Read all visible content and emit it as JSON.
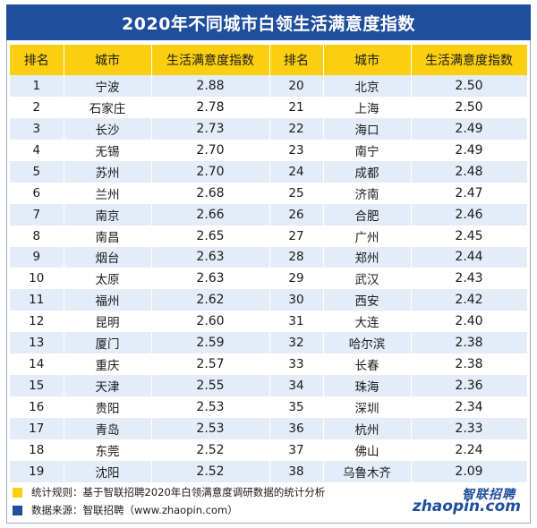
{
  "title": "2020年不同城市白领生活满意度指数",
  "headers": [
    "排名",
    "城市",
    "生活满意度指数",
    "排名",
    "城市",
    "生活满意度指数"
  ],
  "rows": [
    {
      "rank_l": "1",
      "city_l": "宁波",
      "index_l": "2.88",
      "rank_r": "20",
      "city_r": "北京",
      "index_r": "2.50"
    },
    {
      "rank_l": "2",
      "city_l": "石家庄",
      "index_l": "2.78",
      "rank_r": "21",
      "city_r": "上海",
      "index_r": "2.50"
    },
    {
      "rank_l": "3",
      "city_l": "长沙",
      "index_l": "2.73",
      "rank_r": "22",
      "city_r": "海口",
      "index_r": "2.49"
    },
    {
      "rank_l": "4",
      "city_l": "无锡",
      "index_l": "2.70",
      "rank_r": "23",
      "city_r": "南宁",
      "index_r": "2.49"
    },
    {
      "rank_l": "5",
      "city_l": "苏州",
      "index_l": "2.70",
      "rank_r": "24",
      "city_r": "成都",
      "index_r": "2.48"
    },
    {
      "rank_l": "6",
      "city_l": "兰州",
      "index_l": "2.68",
      "rank_r": "25",
      "city_r": "济南",
      "index_r": "2.47"
    },
    {
      "rank_l": "7",
      "city_l": "南京",
      "index_l": "2.66",
      "rank_r": "26",
      "city_r": "合肥",
      "index_r": "2.46"
    },
    {
      "rank_l": "8",
      "city_l": "南昌",
      "index_l": "2.65",
      "rank_r": "27",
      "city_r": "广州",
      "index_r": "2.45"
    },
    {
      "rank_l": "9",
      "city_l": "烟台",
      "index_l": "2.63",
      "rank_r": "28",
      "city_r": "郑州",
      "index_r": "2.44"
    },
    {
      "rank_l": "10",
      "city_l": "太原",
      "index_l": "2.63",
      "rank_r": "29",
      "city_r": "武汉",
      "index_r": "2.43"
    },
    {
      "rank_l": "11",
      "city_l": "福州",
      "index_l": "2.62",
      "rank_r": "30",
      "city_r": "西安",
      "index_r": "2.42"
    },
    {
      "rank_l": "12",
      "city_l": "昆明",
      "index_l": "2.60",
      "rank_r": "31",
      "city_r": "大连",
      "index_r": "2.40"
    },
    {
      "rank_l": "13",
      "city_l": "厦门",
      "index_l": "2.59",
      "rank_r": "32",
      "city_r": "哈尔滨",
      "index_r": "2.38"
    },
    {
      "rank_l": "14",
      "city_l": "重庆",
      "index_l": "2.57",
      "rank_r": "33",
      "city_r": "长春",
      "index_r": "2.38"
    },
    {
      "rank_l": "15",
      "city_l": "天津",
      "index_l": "2.55",
      "rank_r": "34",
      "city_r": "珠海",
      "index_r": "2.36"
    },
    {
      "rank_l": "16",
      "city_l": "贵阳",
      "index_l": "2.53",
      "rank_r": "35",
      "city_r": "深圳",
      "index_r": "2.34"
    },
    {
      "rank_l": "17",
      "city_l": "青岛",
      "index_l": "2.53",
      "rank_r": "36",
      "city_r": "杭州",
      "index_r": "2.33"
    },
    {
      "rank_l": "18",
      "city_l": "东莞",
      "index_l": "2.52",
      "rank_r": "37",
      "city_r": "佛山",
      "index_r": "2.24"
    },
    {
      "rank_l": "19",
      "city_l": "沈阳",
      "index_l": "2.52",
      "rank_r": "38",
      "city_r": "乌鲁木齐",
      "index_r": "2.09"
    }
  ],
  "footer": {
    "rule": "统计规则：基于智联招聘2020年白领满意度调研数据的统计分析",
    "source": "数据来源：智联招聘（www.zhaopin.com）"
  },
  "logo": {
    "cn": "智联招聘",
    "en": "zhaopin.com"
  },
  "colors": {
    "title_bg": "#1f4e9c",
    "header_bg": "#fbcf10",
    "stripe": "#e4ecf8"
  }
}
